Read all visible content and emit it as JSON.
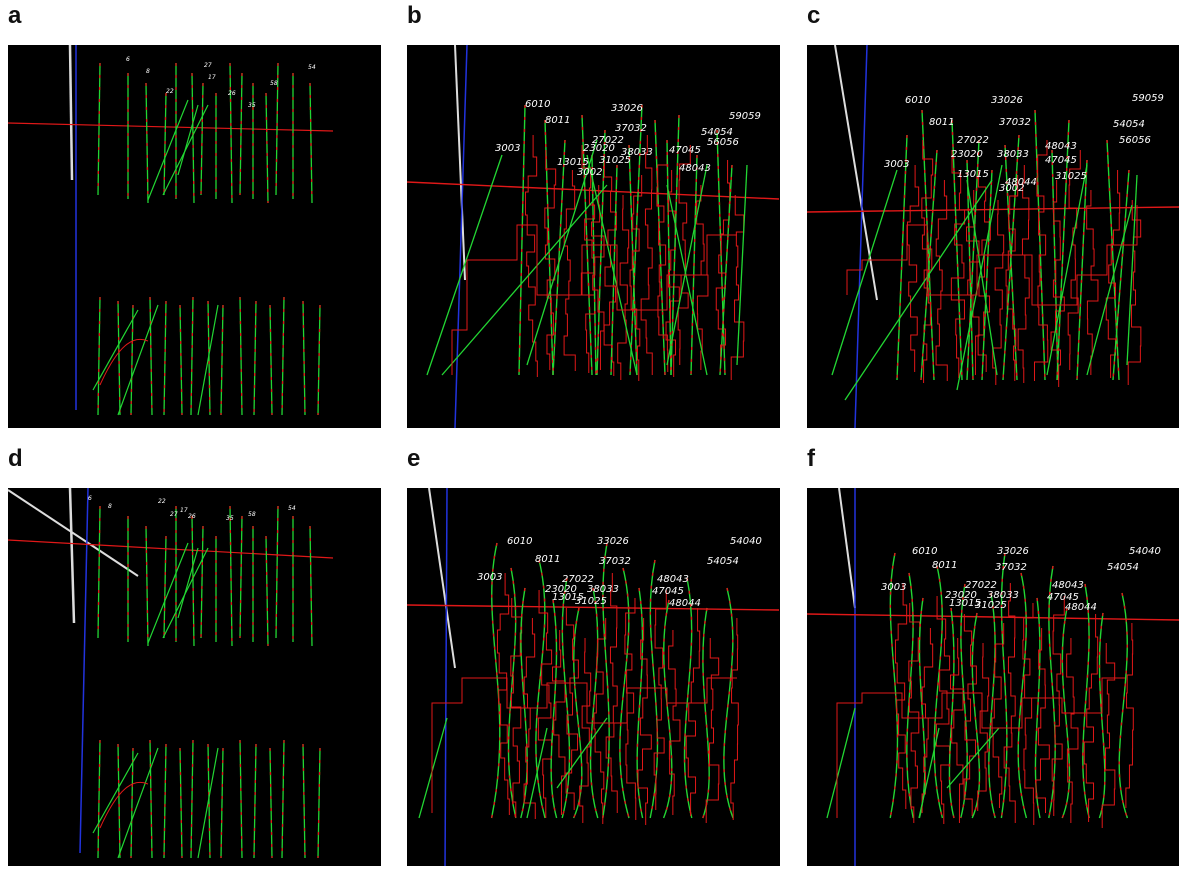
{
  "colors": {
    "background": "#000000",
    "well_track": "#22d633",
    "log_curve": "#e01818",
    "axis_x": "#e01818",
    "axis_y": "#2233dd",
    "axis_z": "#dddddd",
    "label": "#ffffff"
  },
  "panels": [
    {
      "letter": "a",
      "labels": [
        "6",
        "8",
        "22",
        "27",
        "17",
        "26",
        "35",
        "58",
        "54"
      ]
    },
    {
      "letter": "b",
      "labels": [
        "6010",
        "8011",
        "33026",
        "37032",
        "59059",
        "54054",
        "56056",
        "3003",
        "27022",
        "23020",
        "38033",
        "47045",
        "13015",
        "31025",
        "48043",
        "3002"
      ]
    },
    {
      "letter": "c",
      "labels": [
        "6010",
        "33026",
        "59059",
        "8011",
        "37032",
        "54054",
        "56056",
        "27022",
        "48043",
        "23020",
        "38033",
        "47045",
        "3003",
        "13015",
        "31025",
        "48044",
        "3002"
      ]
    },
    {
      "letter": "d",
      "labels": [
        "6",
        "8",
        "22",
        "27",
        "17",
        "26",
        "35",
        "58",
        "54"
      ]
    },
    {
      "letter": "e",
      "labels": [
        "6010",
        "33026",
        "54040",
        "8011",
        "37032",
        "54054",
        "3003",
        "27022",
        "48043",
        "23020",
        "38033",
        "47045",
        "13015",
        "31025",
        "48044"
      ]
    },
    {
      "letter": "f",
      "labels": [
        "6010",
        "33026",
        "54040",
        "8011",
        "37032",
        "54054",
        "3003",
        "27022",
        "48043",
        "23020",
        "38033",
        "47045",
        "13015",
        "31025",
        "48044"
      ]
    }
  ]
}
